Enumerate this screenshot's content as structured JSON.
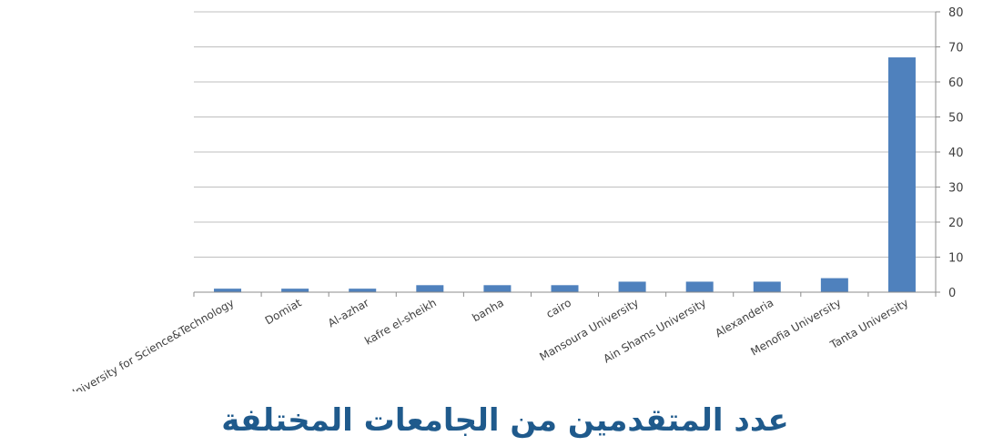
{
  "chart_data": {
    "type": "bar",
    "title": "عدد المتقدمين من الجامعات المختلفة",
    "categories": [
      "Misr University for Science&Technology",
      "Domiat",
      "Al-azhar",
      "kafre el-sheikh",
      "banha",
      "cairo",
      "Mansoura University",
      "Ain Shams University",
      "Alexanderia",
      "Menofia University",
      "Tanta University"
    ],
    "values": [
      1,
      1,
      1,
      2,
      2,
      2,
      3,
      3,
      3,
      4,
      67
    ],
    "yticks": [
      "0",
      "10",
      "20",
      "30",
      "40",
      "50",
      "60",
      "70",
      "80"
    ],
    "ylim": [
      0,
      80
    ],
    "y_axis_side": "right",
    "grid": true,
    "legend": "none",
    "colors": {
      "bar": "#4f81bd",
      "grid": "#bfbfbf",
      "title": "#1f5a8c"
    }
  }
}
